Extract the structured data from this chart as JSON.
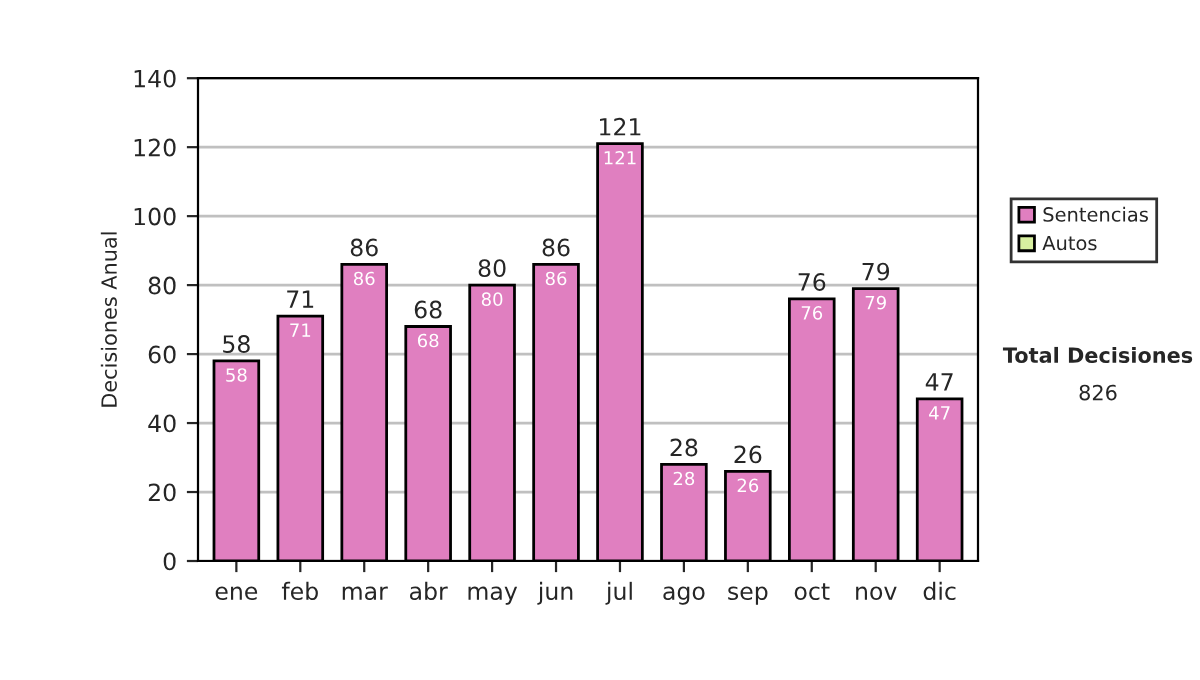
{
  "chart_data": {
    "type": "bar",
    "ylabel": "Decisiones Anual",
    "categories": [
      "ene",
      "feb",
      "mar",
      "abr",
      "may",
      "jun",
      "jul",
      "ago",
      "sep",
      "oct",
      "nov",
      "dic"
    ],
    "stacked": true,
    "series": [
      {
        "name": "Sentencias",
        "color": "#e07fc0",
        "values": [
          58,
          71,
          86,
          68,
          80,
          86,
          121,
          28,
          26,
          76,
          79,
          47
        ],
        "value_labels": [
          "58",
          "71",
          "86",
          "68",
          "80",
          "86",
          "121",
          "28",
          "26",
          "76",
          "79",
          "47"
        ]
      },
      {
        "name": "Autos",
        "color": "#d8f0a0",
        "values": [
          null,
          null,
          null,
          null,
          null,
          null,
          null,
          null,
          null,
          null,
          null,
          null
        ]
      }
    ],
    "totals": [
      "58",
      "71",
      "86",
      "68",
      "80",
      "86",
      "121",
      "28",
      "26",
      "76",
      "79",
      "47"
    ],
    "ylim": [
      0,
      140
    ],
    "yticks": [
      0,
      20,
      40,
      60,
      80,
      100,
      120,
      140
    ],
    "grid": "y",
    "legend": "right",
    "annotations": [
      "Total Decisiones",
      "826"
    ]
  }
}
